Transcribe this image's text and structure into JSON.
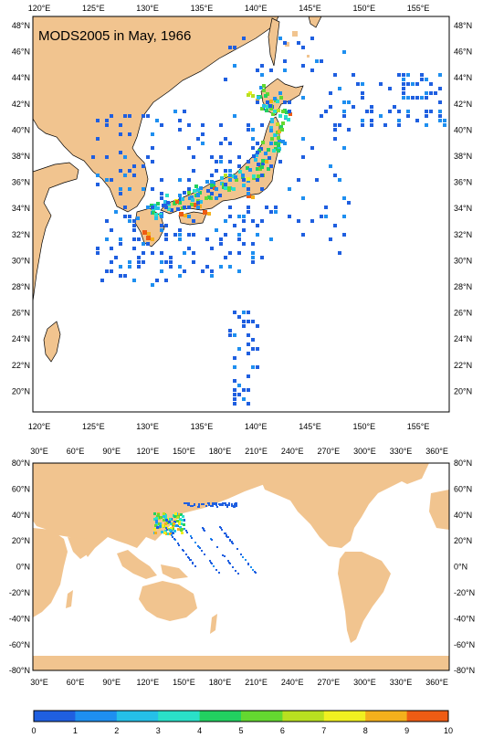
{
  "map_top": {
    "title": "MODS2005 in May, 1966",
    "lon_labels": [
      "120°E",
      "125°E",
      "130°E",
      "135°E",
      "140°E",
      "145°E",
      "150°E",
      "155°E"
    ],
    "lat_labels": [
      "48°N",
      "46°N",
      "44°N",
      "42°N",
      "40°N",
      "38°N",
      "36°N",
      "34°N",
      "32°N",
      "30°N",
      "28°N",
      "26°N",
      "24°N",
      "22°N",
      "20°N"
    ]
  },
  "map_bottom": {
    "lon_labels": [
      "30°E",
      "60°E",
      "90°E",
      "120°E",
      "150°E",
      "180°E",
      "210°E",
      "240°E",
      "270°E",
      "300°E",
      "330°E",
      "360°E"
    ],
    "lat_labels": [
      "80°N",
      "60°N",
      "40°N",
      "20°N",
      "0°N",
      "-20°N",
      "-40°N",
      "-60°N",
      "-80°N"
    ]
  },
  "colorbar": {
    "labels": [
      "0",
      "1",
      "2",
      "3",
      "4",
      "5",
      "6",
      "7",
      "8",
      "9",
      "10"
    ],
    "colors": [
      "#1f5fe0",
      "#1e8ff0",
      "#25c0e8",
      "#2ae0c8",
      "#22d060",
      "#64d830",
      "#b8e020",
      "#f0f020",
      "#f4b01c",
      "#ee5c14"
    ]
  },
  "colors": {
    "land": "#f1c48f",
    "frame": "#000000"
  }
}
